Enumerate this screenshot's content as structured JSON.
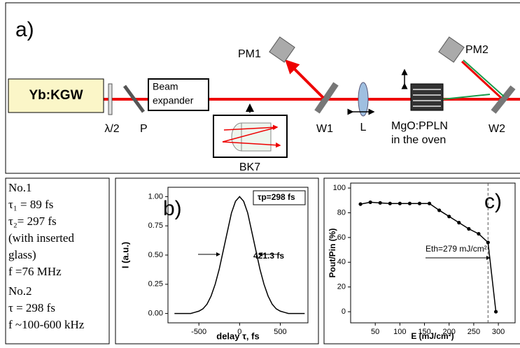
{
  "diagram": {
    "panel": "a)",
    "laser": "Yb:KGW",
    "waveplate": "λ/2",
    "polarizer": "P",
    "expander_1": "Beam",
    "expander_2": "expander",
    "pm1": "PM1",
    "glass": "BK7",
    "w1": "W1",
    "lens": "L",
    "crystal_1": "MgO:PPLN",
    "crystal_2": "in the oven",
    "pm2": "PM2",
    "w2": "W2"
  },
  "text_panel": {
    "lines": [
      "No.1",
      "τ₁ = 89 fs",
      "τ₂= 297 fs",
      "(with inserted",
      "glass)",
      "f =76 MHz",
      "No.2",
      "τ = 298 fs",
      "f ~100-600 kHz"
    ]
  },
  "chart_data": [
    {
      "type": "line",
      "panel": "b)",
      "xlabel": "delay τ, fs",
      "ylabel": "I (a.u.)",
      "annotations": [
        "τp=298 fs",
        "421.3 fs"
      ],
      "color": "#000000",
      "markers": false,
      "x": [
        -800,
        -750,
        -700,
        -650,
        -600,
        -550,
        -500,
        -450,
        -400,
        -350,
        -300,
        -250,
        -200,
        -150,
        -100,
        -50,
        0,
        50,
        100,
        150,
        200,
        250,
        300,
        350,
        400,
        450,
        500,
        550,
        600,
        650,
        700,
        750,
        800
      ],
      "values": [
        0,
        0,
        0,
        0,
        0,
        0.01,
        0.02,
        0.04,
        0.08,
        0.15,
        0.25,
        0.38,
        0.54,
        0.7,
        0.86,
        0.96,
        1,
        0.96,
        0.86,
        0.7,
        0.54,
        0.38,
        0.25,
        0.15,
        0.08,
        0.04,
        0.02,
        0.01,
        0,
        0,
        0,
        0,
        0
      ],
      "xlim": [
        -880,
        840
      ],
      "ylim": [
        -0.08,
        1.08
      ],
      "xticks": [
        -500,
        0,
        500
      ],
      "yticks": [
        {
          "value": 0,
          "label": "0.00"
        },
        {
          "value": 0.25,
          "label": "0.25"
        },
        {
          "value": 0.5,
          "label": "0.50"
        },
        {
          "value": 0.75,
          "label": "0.75"
        },
        {
          "value": 1,
          "label": "1.00"
        }
      ]
    },
    {
      "type": "line",
      "panel": "c)",
      "xlabel": "E (mJ/cm²)",
      "ylabel": "Pout/Pin (%)",
      "annotations": [
        "Eth=279 mJ/cm²"
      ],
      "threshold": 279,
      "color": "#000000",
      "markers": true,
      "x": [
        20,
        40,
        60,
        80,
        100,
        120,
        140,
        160,
        180,
        200,
        220,
        240,
        260,
        279,
        295
      ],
      "values": [
        87,
        88.5,
        88,
        87.5,
        87.5,
        87.5,
        87.5,
        87.5,
        82,
        77,
        72,
        67,
        63,
        56,
        0
      ],
      "xlim": [
        0,
        334
      ],
      "ylim": [
        -9,
        104
      ],
      "xticks": [
        50,
        100,
        150,
        200,
        250,
        300
      ],
      "yticks": [
        0,
        20,
        40,
        60,
        80,
        100
      ]
    }
  ]
}
